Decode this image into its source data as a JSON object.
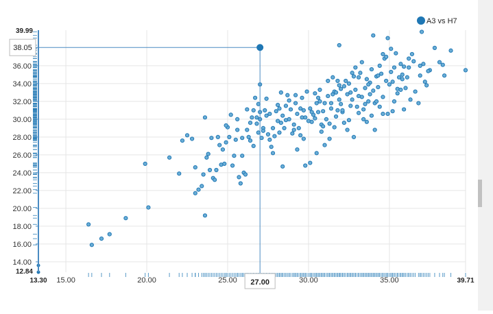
{
  "chart_data": {
    "type": "scatter",
    "legend": {
      "label": "A3 vs H7",
      "color": "#1f77b4",
      "placement": "top-right"
    },
    "xlim": [
      13.3,
      39.71
    ],
    "ylim": [
      12.84,
      39.99
    ],
    "x_ticks": [
      "15.00",
      "20.00",
      "25.00",
      "30.00",
      "35.00"
    ],
    "y_ticks": [
      "14.00",
      "16.00",
      "18.00",
      "20.00",
      "22.00",
      "24.00",
      "26.00",
      "28.00",
      "30.00",
      "32.00",
      "34.00",
      "36.00"
    ],
    "x_min_label": "13.30",
    "x_max_label": "39.71",
    "y_min_label": "12.84",
    "y_max_label": "39.99",
    "grid": true,
    "highlight": {
      "x": 27.0,
      "y": 38.05,
      "x_label": "27.00",
      "y_label": "38.05"
    },
    "colors": {
      "point": "#1f77b4",
      "grid": "#e5e5e5",
      "guide": "#4a8bc2"
    },
    "points": [
      [
        16.4,
        18.2
      ],
      [
        16.6,
        15.9
      ],
      [
        17.2,
        16.6
      ],
      [
        17.7,
        17.1
      ],
      [
        18.7,
        18.9
      ],
      [
        19.9,
        25.0
      ],
      [
        20.1,
        20.1
      ],
      [
        21.4,
        25.7
      ],
      [
        22.0,
        23.9
      ],
      [
        22.2,
        27.6
      ],
      [
        22.5,
        28.2
      ],
      [
        22.8,
        27.8
      ],
      [
        23.0,
        24.6
      ],
      [
        23.0,
        21.7
      ],
      [
        23.2,
        22.1
      ],
      [
        23.4,
        22.5
      ],
      [
        23.5,
        23.8
      ],
      [
        23.6,
        30.2
      ],
      [
        23.6,
        19.2
      ],
      [
        23.7,
        25.7
      ],
      [
        23.8,
        26.1
      ],
      [
        23.9,
        24.3
      ],
      [
        24.0,
        27.9
      ],
      [
        24.1,
        23.4
      ],
      [
        24.2,
        23.2
      ],
      [
        24.3,
        24.3
      ],
      [
        24.4,
        28.0
      ],
      [
        24.5,
        27.1
      ],
      [
        24.6,
        24.9
      ],
      [
        24.7,
        26.6
      ],
      [
        24.8,
        25.0
      ],
      [
        24.9,
        27.4
      ],
      [
        25.0,
        29.1
      ],
      [
        25.1,
        28.0
      ],
      [
        25.2,
        30.5
      ],
      [
        25.3,
        24.8
      ],
      [
        25.4,
        25.9
      ],
      [
        25.5,
        27.7
      ],
      [
        25.6,
        28.8
      ],
      [
        25.7,
        23.5
      ],
      [
        25.8,
        22.8
      ],
      [
        25.9,
        25.9
      ],
      [
        26.0,
        24.0
      ],
      [
        26.1,
        23.8
      ],
      [
        26.2,
        28.8
      ],
      [
        26.3,
        28.0
      ],
      [
        26.4,
        29.6
      ],
      [
        26.5,
        30.2
      ],
      [
        26.6,
        31.0
      ],
      [
        26.6,
        27.0
      ],
      [
        26.7,
        32.4
      ],
      [
        26.8,
        29.5
      ],
      [
        26.9,
        28.5
      ],
      [
        27.0,
        33.9
      ],
      [
        27.0,
        30.8
      ],
      [
        27.0,
        30.0
      ],
      [
        27.1,
        27.9
      ],
      [
        27.2,
        29.0
      ],
      [
        27.3,
        31.0
      ],
      [
        27.4,
        30.4
      ],
      [
        27.5,
        28.3
      ],
      [
        27.6,
        27.7
      ],
      [
        27.7,
        26.9
      ],
      [
        27.8,
        29.0
      ],
      [
        27.9,
        28.1
      ],
      [
        28.0,
        30.9
      ],
      [
        28.1,
        29.8
      ],
      [
        28.2,
        31.2
      ],
      [
        28.3,
        29.6
      ],
      [
        28.4,
        30.4
      ],
      [
        28.5,
        29.0
      ],
      [
        28.6,
        31.5
      ],
      [
        28.7,
        32.7
      ],
      [
        28.8,
        30.0
      ],
      [
        28.9,
        31.1
      ],
      [
        29.0,
        28.4
      ],
      [
        29.1,
        29.4
      ],
      [
        29.2,
        31.8
      ],
      [
        29.3,
        30.6
      ],
      [
        29.4,
        29.0
      ],
      [
        29.5,
        28.2
      ],
      [
        29.6,
        30.2
      ],
      [
        29.7,
        31.0
      ],
      [
        29.8,
        30.2
      ],
      [
        30.0,
        29.8
      ],
      [
        29.8,
        24.8
      ],
      [
        30.1,
        31.2
      ],
      [
        30.2,
        29.7
      ],
      [
        30.3,
        30.5
      ],
      [
        30.4,
        30.1
      ],
      [
        30.5,
        31.8
      ],
      [
        30.6,
        30.8
      ],
      [
        30.7,
        32.0
      ],
      [
        30.8,
        29.4
      ],
      [
        30.9,
        30.9
      ],
      [
        31.0,
        31.8
      ],
      [
        31.1,
        30.0
      ],
      [
        31.2,
        32.6
      ],
      [
        31.3,
        29.5
      ],
      [
        31.4,
        31.2
      ],
      [
        31.5,
        32.8
      ],
      [
        31.6,
        33.1
      ],
      [
        31.7,
        30.3
      ],
      [
        31.8,
        31.0
      ],
      [
        31.9,
        33.8
      ],
      [
        32.0,
        31.7
      ],
      [
        32.1,
        30.8
      ],
      [
        32.2,
        33.7
      ],
      [
        32.3,
        34.3
      ],
      [
        32.4,
        32.8
      ],
      [
        32.5,
        29.9
      ],
      [
        32.6,
        33.0
      ],
      [
        32.7,
        32.2
      ],
      [
        32.8,
        34.8
      ],
      [
        32.9,
        33.3
      ],
      [
        33.0,
        31.4
      ],
      [
        33.1,
        32.6
      ],
      [
        33.2,
        35.2
      ],
      [
        33.3,
        32.5
      ],
      [
        33.4,
        31.1
      ],
      [
        33.5,
        33.5
      ],
      [
        33.6,
        34.5
      ],
      [
        33.7,
        32.0
      ],
      [
        33.8,
        34.1
      ],
      [
        33.9,
        35.6
      ],
      [
        34.0,
        33.2
      ],
      [
        34.1,
        31.8
      ],
      [
        34.2,
        34.8
      ],
      [
        34.3,
        33.6
      ],
      [
        34.4,
        36.0
      ],
      [
        34.5,
        35.1
      ],
      [
        34.6,
        32.5
      ],
      [
        34.7,
        36.8
      ],
      [
        34.8,
        37.0
      ],
      [
        34.9,
        30.6
      ],
      [
        35.0,
        33.9
      ],
      [
        35.1,
        35.3
      ],
      [
        35.2,
        34.2
      ],
      [
        35.3,
        35.8
      ],
      [
        35.4,
        37.4
      ],
      [
        35.5,
        33.4
      ],
      [
        35.6,
        34.7
      ],
      [
        35.7,
        36.2
      ],
      [
        35.8,
        34.5
      ],
      [
        35.9,
        35.9
      ],
      [
        36.0,
        33.5
      ],
      [
        36.2,
        35.8
      ],
      [
        36.4,
        37.3
      ],
      [
        36.6,
        33.1
      ],
      [
        36.8,
        31.8
      ],
      [
        36.9,
        34.9
      ],
      [
        37.0,
        39.8
      ],
      [
        37.1,
        36.2
      ],
      [
        37.3,
        33.8
      ],
      [
        37.5,
        35.5
      ],
      [
        37.8,
        38.0
      ],
      [
        38.1,
        36.4
      ],
      [
        38.4,
        34.9
      ],
      [
        38.8,
        37.7
      ],
      [
        39.71,
        35.5
      ],
      [
        30.5,
        26.2
      ],
      [
        31.3,
        27.8
      ],
      [
        29.3,
        26.6
      ],
      [
        31.0,
        27.1
      ],
      [
        31.6,
        29.1
      ],
      [
        32.4,
        28.8
      ],
      [
        32.8,
        28.0
      ],
      [
        33.6,
        29.7
      ],
      [
        34.1,
        28.8
      ],
      [
        30.1,
        25.1
      ],
      [
        28.4,
        24.7
      ],
      [
        27.8,
        26.2
      ],
      [
        29.7,
        27.8
      ],
      [
        30.8,
        28.6
      ],
      [
        33.1,
        30.7
      ],
      [
        34.6,
        30.6
      ],
      [
        35.3,
        32.0
      ],
      [
        36.3,
        32.2
      ],
      [
        35.9,
        31.1
      ],
      [
        34.4,
        31.4
      ],
      [
        33.9,
        30.4
      ],
      [
        32.1,
        31.0
      ],
      [
        31.2,
        34.3
      ],
      [
        31.5,
        34.7
      ],
      [
        32.7,
        35.2
      ],
      [
        33.3,
        36.4
      ],
      [
        34.0,
        39.4
      ],
      [
        34.9,
        39.1
      ],
      [
        31.9,
        38.3
      ],
      [
        35.1,
        37.9
      ],
      [
        36.2,
        36.8
      ],
      [
        34.6,
        37.3
      ],
      [
        32.9,
        35.8
      ],
      [
        31.7,
        33.0
      ],
      [
        30.6,
        32.4
      ],
      [
        29.9,
        33.1
      ],
      [
        29.2,
        32.7
      ],
      [
        28.8,
        32.1
      ],
      [
        28.1,
        31.6
      ],
      [
        27.4,
        32.3
      ],
      [
        26.9,
        31.7
      ],
      [
        26.2,
        31.1
      ],
      [
        25.6,
        30.0
      ],
      [
        29.5,
        31.2
      ],
      [
        30.4,
        32.9
      ],
      [
        31.8,
        34.3
      ],
      [
        32.5,
        34.0
      ],
      [
        33.7,
        33.9
      ],
      [
        34.8,
        34.3
      ],
      [
        35.7,
        33.3
      ],
      [
        36.5,
        36.5
      ],
      [
        37.2,
        34.2
      ],
      [
        35.2,
        30.9
      ],
      [
        33.4,
        30.0
      ],
      [
        32.2,
        29.6
      ],
      [
        30.9,
        29.2
      ],
      [
        29.1,
        28.8
      ],
      [
        28.2,
        28.5
      ],
      [
        27.2,
        28.7
      ],
      [
        26.4,
        27.6
      ],
      [
        25.9,
        27.9
      ],
      [
        24.9,
        29.3
      ],
      [
        26.8,
        30.2
      ],
      [
        28.6,
        29.9
      ],
      [
        30.2,
        30.8
      ],
      [
        31.9,
        32.2
      ],
      [
        33.5,
        31.7
      ],
      [
        34.2,
        32.0
      ],
      [
        35.5,
        32.9
      ],
      [
        36.1,
        34.7
      ],
      [
        37.4,
        35.4
      ],
      [
        38.3,
        36.1
      ],
      [
        36.9,
        36.0
      ],
      [
        35.8,
        35.0
      ],
      [
        34.3,
        34.9
      ],
      [
        33.1,
        34.7
      ],
      [
        32.0,
        33.4
      ],
      [
        30.7,
        33.3
      ],
      [
        29.6,
        32.4
      ],
      [
        28.3,
        33.0
      ],
      [
        27.6,
        30.6
      ],
      [
        31.4,
        31.8
      ],
      [
        32.6,
        31.5
      ],
      [
        33.8,
        32.8
      ]
    ]
  }
}
